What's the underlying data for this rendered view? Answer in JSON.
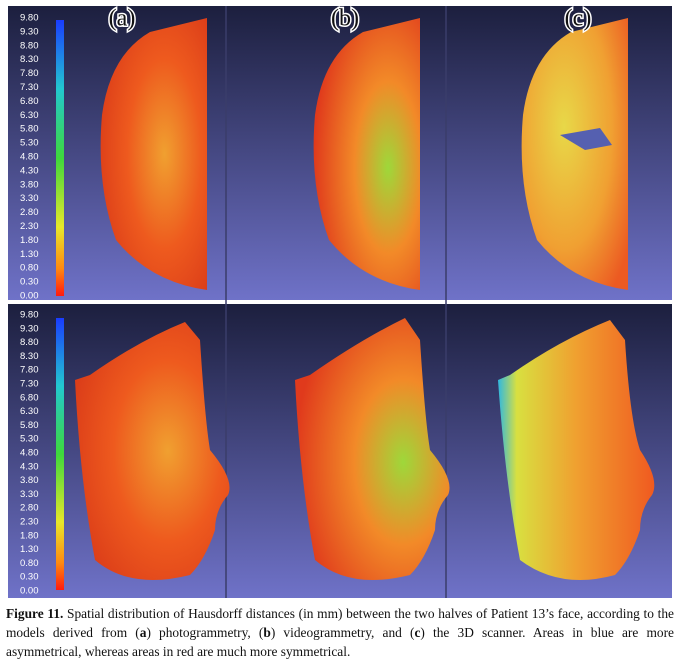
{
  "figure": {
    "panel_labels": [
      "(a)",
      "(b)",
      "(c)"
    ],
    "top_scale": [
      "9.80",
      "9.30",
      "8.80",
      "8.30",
      "7.80",
      "7.30",
      "6.80",
      "6.30",
      "5.80",
      "5.30",
      "4.80",
      "4.30",
      "3.80",
      "3.30",
      "2.80",
      "2.30",
      "1.80",
      "1.30",
      "0.80",
      "0.30",
      "0.00"
    ],
    "bottom_scale": [
      "9.80",
      "9.30",
      "8.80",
      "8.30",
      "7.80",
      "7.30",
      "6.80",
      "6.30",
      "5.80",
      "5.30",
      "4.80",
      "4.30",
      "3.80",
      "3.30",
      "2.80",
      "2.30",
      "1.80",
      "1.30",
      "0.80",
      "0.30",
      "0.00"
    ],
    "caption": {
      "label": "Figure 11.",
      "parts": [
        " Spatial distribution of Hausdorff distances (in mm) between the two halves of Patient 13’s face, according to the models derived from (",
        "a",
        ") photogrammetry, (",
        "b",
        ") videogrammetry, and (",
        "c",
        ") the 3D scanner. Areas in blue are more asymmetrical, whereas areas in red are much more symmetrical."
      ]
    }
  }
}
